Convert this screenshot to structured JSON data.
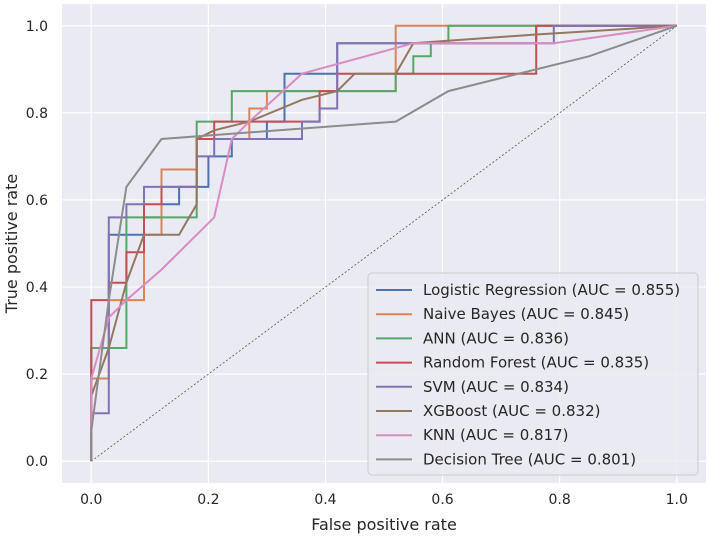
{
  "chart_data": {
    "type": "line",
    "title": "",
    "xlabel": "False positive rate",
    "ylabel": "True positive rate",
    "xlim": [
      -0.05,
      1.05
    ],
    "ylim": [
      -0.05,
      1.05
    ],
    "xticks": [
      "0.0",
      "0.2",
      "0.4",
      "0.6",
      "0.8",
      "1.0"
    ],
    "yticks": [
      "0.0",
      "0.2",
      "0.4",
      "0.6",
      "0.8",
      "1.0"
    ],
    "grid": true,
    "background": "#EAEAF2",
    "legend_position": "lower-right",
    "diagonal_reference": true,
    "series": [
      {
        "name": "Logistic Regression (AUC = 0.855)",
        "color": "#4C72B0",
        "points": [
          [
            0,
            0
          ],
          [
            0,
            0.26
          ],
          [
            0.03,
            0.26
          ],
          [
            0.03,
            0.52
          ],
          [
            0.09,
            0.52
          ],
          [
            0.09,
            0.56
          ],
          [
            0.12,
            0.56
          ],
          [
            0.12,
            0.59
          ],
          [
            0.15,
            0.59
          ],
          [
            0.15,
            0.63
          ],
          [
            0.2,
            0.63
          ],
          [
            0.2,
            0.7
          ],
          [
            0.24,
            0.7
          ],
          [
            0.24,
            0.74
          ],
          [
            0.3,
            0.74
          ],
          [
            0.3,
            0.78
          ],
          [
            0.33,
            0.78
          ],
          [
            0.33,
            0.89
          ],
          [
            0.42,
            0.89
          ],
          [
            0.42,
            0.96
          ],
          [
            0.76,
            0.96
          ],
          [
            0.76,
            1.0
          ],
          [
            1.0,
            1.0
          ]
        ]
      },
      {
        "name": "Naive Bayes (AUC = 0.845)",
        "color": "#DD8452",
        "points": [
          [
            0,
            0
          ],
          [
            0,
            0.19
          ],
          [
            0.03,
            0.19
          ],
          [
            0.03,
            0.37
          ],
          [
            0.06,
            0.37
          ],
          [
            0.09,
            0.37
          ],
          [
            0.09,
            0.52
          ],
          [
            0.12,
            0.52
          ],
          [
            0.12,
            0.67
          ],
          [
            0.18,
            0.67
          ],
          [
            0.18,
            0.74
          ],
          [
            0.27,
            0.74
          ],
          [
            0.27,
            0.81
          ],
          [
            0.3,
            0.81
          ],
          [
            0.3,
            0.85
          ],
          [
            0.45,
            0.85
          ],
          [
            0.52,
            0.85
          ],
          [
            0.52,
            1.0
          ],
          [
            1.0,
            1.0
          ]
        ]
      },
      {
        "name": "ANN (AUC = 0.836)",
        "color": "#55A868",
        "points": [
          [
            0,
            0
          ],
          [
            0,
            0.26
          ],
          [
            0.06,
            0.26
          ],
          [
            0.06,
            0.56
          ],
          [
            0.18,
            0.56
          ],
          [
            0.18,
            0.78
          ],
          [
            0.24,
            0.78
          ],
          [
            0.24,
            0.85
          ],
          [
            0.52,
            0.85
          ],
          [
            0.52,
            0.89
          ],
          [
            0.55,
            0.89
          ],
          [
            0.55,
            0.93
          ],
          [
            0.58,
            0.93
          ],
          [
            0.58,
            0.96
          ],
          [
            0.61,
            0.96
          ],
          [
            0.61,
            1.0
          ],
          [
            1.0,
            1.0
          ]
        ]
      },
      {
        "name": "Random Forest (AUC = 0.835)",
        "color": "#C44E52",
        "points": [
          [
            0,
            0
          ],
          [
            0,
            0.37
          ],
          [
            0.03,
            0.37
          ],
          [
            0.03,
            0.41
          ],
          [
            0.06,
            0.41
          ],
          [
            0.06,
            0.48
          ],
          [
            0.09,
            0.48
          ],
          [
            0.09,
            0.59
          ],
          [
            0.12,
            0.59
          ],
          [
            0.12,
            0.63
          ],
          [
            0.18,
            0.63
          ],
          [
            0.18,
            0.74
          ],
          [
            0.21,
            0.74
          ],
          [
            0.21,
            0.78
          ],
          [
            0.39,
            0.78
          ],
          [
            0.39,
            0.85
          ],
          [
            0.42,
            0.85
          ],
          [
            0.42,
            0.89
          ],
          [
            0.76,
            0.89
          ],
          [
            0.76,
            1.0
          ],
          [
            1.0,
            1.0
          ]
        ]
      },
      {
        "name": "SVM (AUC = 0.834)",
        "color": "#8172B3",
        "points": [
          [
            0,
            0
          ],
          [
            0,
            0.11
          ],
          [
            0.03,
            0.11
          ],
          [
            0.03,
            0.56
          ],
          [
            0.06,
            0.56
          ],
          [
            0.06,
            0.59
          ],
          [
            0.09,
            0.59
          ],
          [
            0.09,
            0.63
          ],
          [
            0.18,
            0.63
          ],
          [
            0.18,
            0.7
          ],
          [
            0.21,
            0.7
          ],
          [
            0.21,
            0.74
          ],
          [
            0.36,
            0.74
          ],
          [
            0.36,
            0.78
          ],
          [
            0.39,
            0.78
          ],
          [
            0.39,
            0.81
          ],
          [
            0.42,
            0.81
          ],
          [
            0.42,
            0.96
          ],
          [
            0.79,
            0.96
          ],
          [
            0.79,
            1.0
          ],
          [
            1.0,
            1.0
          ]
        ]
      },
      {
        "name": "XGBoost (AUC = 0.832)",
        "color": "#937860",
        "points": [
          [
            0,
            0
          ],
          [
            0,
            0.15
          ],
          [
            0.03,
            0.26
          ],
          [
            0.06,
            0.41
          ],
          [
            0.09,
            0.52
          ],
          [
            0.15,
            0.52
          ],
          [
            0.18,
            0.59
          ],
          [
            0.18,
            0.74
          ],
          [
            0.21,
            0.76
          ],
          [
            0.27,
            0.78
          ],
          [
            0.36,
            0.83
          ],
          [
            0.42,
            0.85
          ],
          [
            0.45,
            0.89
          ],
          [
            0.52,
            0.89
          ],
          [
            0.55,
            0.96
          ],
          [
            0.76,
            0.98
          ],
          [
            1.0,
            1.0
          ]
        ]
      },
      {
        "name": "KNN (AUC = 0.817)",
        "color": "#DA8BC3",
        "points": [
          [
            0,
            0
          ],
          [
            0,
            0.19
          ],
          [
            0.03,
            0.33
          ],
          [
            0.06,
            0.37
          ],
          [
            0.12,
            0.44
          ],
          [
            0.21,
            0.56
          ],
          [
            0.24,
            0.74
          ],
          [
            0.27,
            0.78
          ],
          [
            0.36,
            0.89
          ],
          [
            0.55,
            0.96
          ],
          [
            0.79,
            0.96
          ],
          [
            1.0,
            1.0
          ]
        ]
      },
      {
        "name": "Decision Tree (AUC = 0.801)",
        "color": "#8C8C8C",
        "points": [
          [
            0,
            0
          ],
          [
            0,
            0.07
          ],
          [
            0.03,
            0.37
          ],
          [
            0.06,
            0.63
          ],
          [
            0.12,
            0.74
          ],
          [
            0.52,
            0.78
          ],
          [
            0.61,
            0.85
          ],
          [
            0.85,
            0.93
          ],
          [
            1.0,
            1.0
          ]
        ]
      }
    ]
  }
}
